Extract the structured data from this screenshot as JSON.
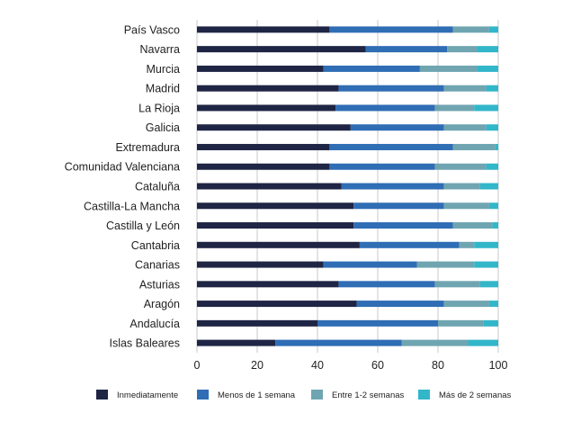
{
  "chart_data": {
    "type": "bar",
    "orientation": "horizontal",
    "stacked": true,
    "title": "",
    "xlabel": "",
    "ylabel": "",
    "xlim": [
      0,
      100
    ],
    "xticks": [
      0,
      20,
      40,
      60,
      80,
      100
    ],
    "grid": true,
    "legend_position": "bottom",
    "categories": [
      "País Vasco",
      "Navarra",
      "Murcia",
      "Madrid",
      "La Rioja",
      "Galicia",
      "Extremadura",
      "Comunidad Valenciana",
      "Cataluña",
      "Castilla-La Mancha",
      "Castilla y León",
      "Cantabria",
      "Canarias",
      "Asturias",
      "Aragón",
      "Andalucía",
      "Islas Baleares"
    ],
    "series": [
      {
        "name": "Inmediatamente",
        "color": "#1f2544",
        "values": [
          44,
          56,
          42,
          47,
          46,
          51,
          44,
          44,
          48,
          52,
          52,
          54,
          42,
          47,
          53,
          40,
          26
        ]
      },
      {
        "name": "Menos de 1 semana",
        "color": "#2f6db5",
        "values": [
          41,
          27,
          32,
          35,
          33,
          31,
          41,
          35,
          34,
          30,
          33,
          33,
          31,
          32,
          29,
          40,
          42
        ]
      },
      {
        "name": "Entre 1-2 semanas",
        "color": "#6fa5b1",
        "values": [
          12,
          10,
          19,
          14,
          13,
          14,
          14,
          17,
          12,
          15,
          13,
          5,
          19,
          15,
          15,
          15,
          22
        ]
      },
      {
        "name": "Más de 2 semanas",
        "color": "#32b6c9",
        "values": [
          3,
          7,
          7,
          4,
          8,
          4,
          1,
          4,
          6,
          3,
          2,
          8,
          8,
          6,
          3,
          5,
          10
        ]
      }
    ]
  }
}
